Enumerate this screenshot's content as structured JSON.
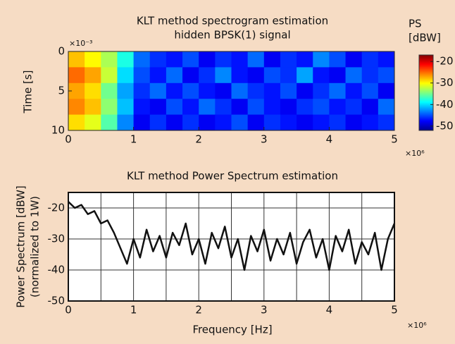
{
  "chart_data": [
    {
      "type": "heatmap",
      "title": [
        "KLT method spectrogram estimation",
        "hidden BPSK(1) signal"
      ],
      "ylabel": "Time [s]",
      "y_multiplier": "×10⁻³",
      "x_multiplier": "×10⁶",
      "xlim": [
        0,
        5
      ],
      "xticks": [
        0,
        1,
        2,
        3,
        4,
        5
      ],
      "ylim": [
        10,
        0
      ],
      "yticks": [
        0,
        5,
        10
      ],
      "colorbar_title": [
        "PS",
        "[dBW]"
      ],
      "clim": [
        -52,
        -17
      ],
      "cticks": [
        -20,
        -30,
        -40,
        -50
      ],
      "colormap": "jet",
      "z": [
        [
          -28,
          -30,
          -33,
          -38,
          -44,
          -46,
          -47,
          -45,
          -48,
          -46,
          -47,
          -44,
          -48,
          -46,
          -47,
          -43,
          -45,
          -48,
          -46,
          -47
        ],
        [
          -25,
          -27,
          -32,
          -40,
          -45,
          -47,
          -44,
          -48,
          -46,
          -43,
          -47,
          -48,
          -45,
          -46,
          -42,
          -47,
          -48,
          -44,
          -46,
          -45
        ],
        [
          -27,
          -29,
          -35,
          -42,
          -46,
          -44,
          -47,
          -45,
          -47,
          -48,
          -44,
          -46,
          -47,
          -45,
          -48,
          -46,
          -44,
          -47,
          -45,
          -48
        ],
        [
          -26,
          -28,
          -34,
          -41,
          -47,
          -48,
          -45,
          -47,
          -44,
          -46,
          -48,
          -45,
          -47,
          -48,
          -46,
          -45,
          -47,
          -46,
          -48,
          -44
        ],
        [
          -29,
          -31,
          -36,
          -43,
          -48,
          -46,
          -48,
          -46,
          -48,
          -47,
          -45,
          -48,
          -46,
          -47,
          -48,
          -47,
          -46,
          -48,
          -47,
          -46
        ]
      ]
    },
    {
      "type": "line",
      "title": "KLT method Power Spectrum estimation",
      "ylabel": [
        "Power Spectrum [dBW]",
        "(normalized to 1W)"
      ],
      "xlabel": "Frequency [Hz]",
      "x_multiplier": "×10⁶",
      "xlim": [
        0,
        5
      ],
      "xticks": [
        0,
        1,
        2,
        3,
        4,
        5
      ],
      "xgrid": [
        0,
        0.5,
        1,
        1.5,
        2,
        2.5,
        3,
        3.5,
        4,
        4.5,
        5
      ],
      "ylim": [
        -50,
        -15
      ],
      "yticks": [
        -20,
        -30,
        -40,
        -50
      ],
      "grid": true,
      "color": "#111111",
      "x": [
        0,
        0.1,
        0.2,
        0.3,
        0.4,
        0.5,
        0.6,
        0.7,
        0.8,
        0.9,
        1,
        1.1,
        1.2,
        1.3,
        1.4,
        1.5,
        1.6,
        1.7,
        1.8,
        1.9,
        2,
        2.1,
        2.2,
        2.3,
        2.4,
        2.5,
        2.6,
        2.7,
        2.8,
        2.9,
        3,
        3.1,
        3.2,
        3.3,
        3.4,
        3.5,
        3.6,
        3.7,
        3.8,
        3.9,
        4,
        4.1,
        4.2,
        4.3,
        4.4,
        4.5,
        4.6,
        4.7,
        4.8,
        4.9,
        5
      ],
      "values": [
        -18,
        -20,
        -19,
        -22,
        -21,
        -25,
        -24,
        -28,
        -33,
        -38,
        -30,
        -36,
        -27,
        -34,
        -29,
        -36,
        -28,
        -32,
        -25,
        -35,
        -30,
        -38,
        -28,
        -33,
        -26,
        -36,
        -30,
        -40,
        -29,
        -34,
        -27,
        -37,
        -30,
        -35,
        -28,
        -38,
        -31,
        -27,
        -36,
        -30,
        -40,
        -29,
        -34,
        -27,
        -38,
        -31,
        -35,
        -28,
        -40,
        -30,
        -25
      ]
    }
  ]
}
